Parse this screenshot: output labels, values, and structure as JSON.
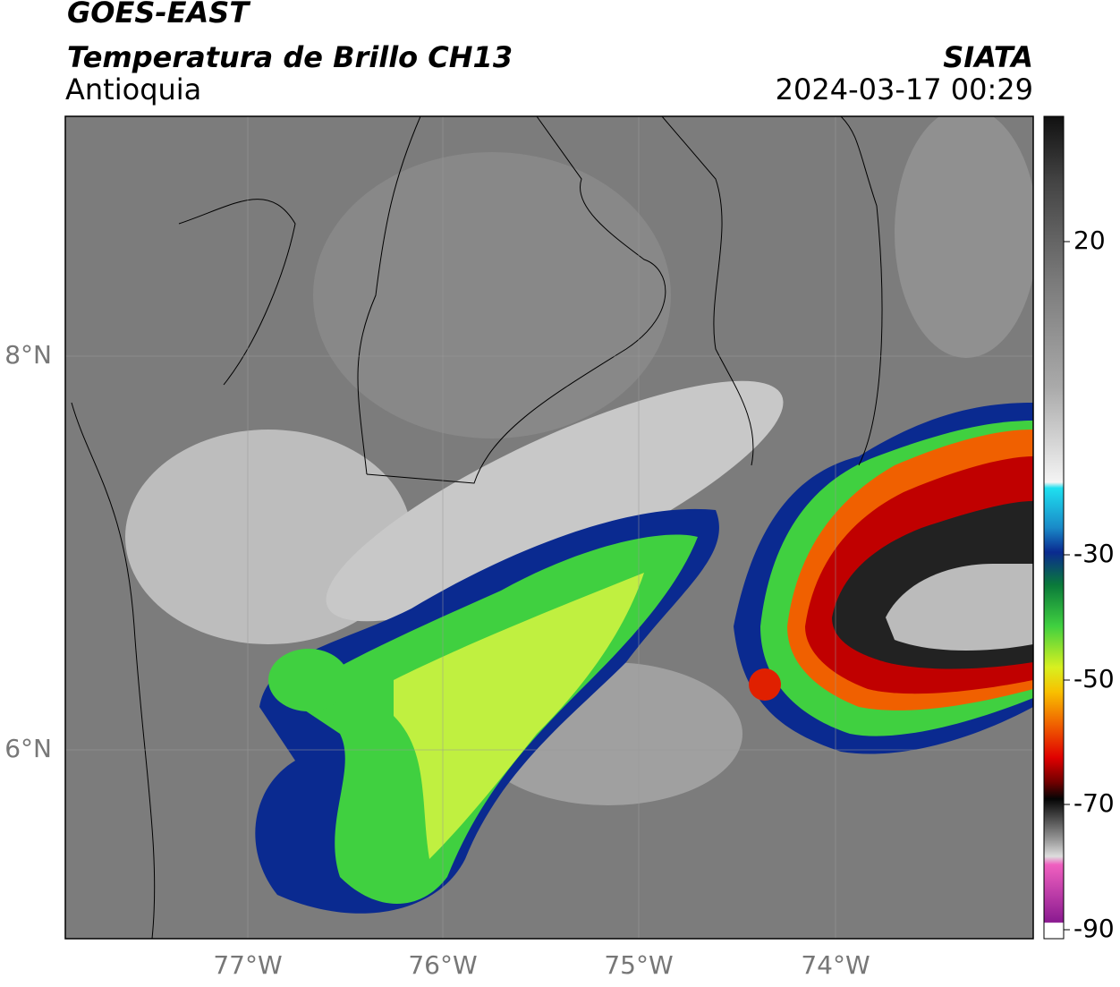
{
  "header": {
    "title": "GOES-EAST",
    "subtitle": "Temperatura de Brillo CH13",
    "region": "Antioquia",
    "source": "SIATA",
    "datetime": "2024-03-17 00:29"
  },
  "map": {
    "lat_labels": [
      "8°N",
      "6°N"
    ],
    "lon_labels": [
      "77°W",
      "76°W",
      "75°W",
      "74°W"
    ]
  },
  "colorbar": {
    "ticks": [
      20,
      -30,
      -50,
      -70,
      -90
    ]
  }
}
